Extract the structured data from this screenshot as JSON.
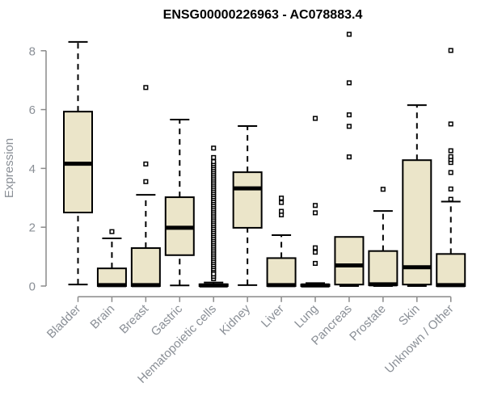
{
  "chart_data": {
    "type": "boxplot",
    "title": "ENSG00000226963 - AC078883.4",
    "ylabel": "Expression",
    "ylim": [
      0,
      8.6
    ],
    "yticks": [
      0,
      2,
      4,
      6,
      8
    ],
    "grid": false,
    "legend": "none",
    "categories": [
      "Bladder",
      "Brain",
      "Breast",
      "Gastric",
      "Hematopoietic cells",
      "Kidney",
      "Liver",
      "Lung",
      "Pancreas",
      "Prostate",
      "Skin",
      "Unknown / Other"
    ],
    "boxes": [
      {
        "category": "Bladder",
        "low": 0.05,
        "q1": 2.5,
        "median": 4.16,
        "q3": 5.93,
        "high": 8.3,
        "outliers": []
      },
      {
        "category": "Brain",
        "low": 0.0,
        "q1": 0.0,
        "median": 0.03,
        "q3": 0.6,
        "high": 1.62,
        "outliers": [
          1.85
        ]
      },
      {
        "category": "Breast",
        "low": 0.0,
        "q1": 0.0,
        "median": 0.03,
        "q3": 1.29,
        "high": 3.1,
        "outliers": [
          3.55,
          4.15,
          6.75
        ]
      },
      {
        "category": "Gastric",
        "low": 0.02,
        "q1": 1.05,
        "median": 1.98,
        "q3": 3.02,
        "high": 5.66,
        "outliers": []
      },
      {
        "category": "Hematopoietic cells",
        "low": 0.0,
        "q1": 0.0,
        "median": 0.02,
        "q3": 0.06,
        "high": 0.12,
        "outliers": [
          0.25,
          0.33,
          0.41,
          4.37,
          4.69
        ],
        "outlier_band": {
          "from": 0.45,
          "to": 4.25
        }
      },
      {
        "category": "Kidney",
        "low": 0.03,
        "q1": 1.98,
        "median": 3.32,
        "q3": 3.87,
        "high": 5.44,
        "outliers": []
      },
      {
        "category": "Liver",
        "low": 0.0,
        "q1": 0.0,
        "median": 0.03,
        "q3": 0.95,
        "high": 1.73,
        "outliers": [
          2.42,
          2.54,
          2.84,
          2.99
        ]
      },
      {
        "category": "Lung",
        "low": 0.0,
        "q1": 0.0,
        "median": 0.02,
        "q3": 0.05,
        "high": 0.1,
        "outliers": [
          0.77,
          1.15,
          1.3,
          2.49,
          2.74,
          5.7
        ]
      },
      {
        "category": "Pancreas",
        "low": 0.0,
        "q1": 0.05,
        "median": 0.7,
        "q3": 1.67,
        "high": 1.67,
        "outliers": [
          4.39,
          5.43,
          5.82,
          6.91,
          8.56
        ]
      },
      {
        "category": "Prostate",
        "low": 0.0,
        "q1": 0.03,
        "median": 0.06,
        "q3": 1.19,
        "high": 2.55,
        "outliers": [
          3.29
        ]
      },
      {
        "category": "Skin",
        "low": 0.0,
        "q1": 0.05,
        "median": 0.64,
        "q3": 4.28,
        "high": 6.15,
        "outliers": []
      },
      {
        "category": "Unknown / Other",
        "low": 0.0,
        "q1": 0.0,
        "median": 0.03,
        "q3": 1.09,
        "high": 2.87,
        "outliers": [
          2.95,
          3.3,
          3.86,
          4.2,
          4.3,
          4.4,
          4.6,
          5.51,
          8.01
        ]
      }
    ],
    "colors": {
      "box_fill": "#EBE5C9",
      "box_stroke": "#000000",
      "median": "#000000",
      "whisker": "#000000",
      "outlier_stroke": "#000000",
      "axis": "#8a8a8a",
      "tick_text": "#8a8f96",
      "title_text": "#000000",
      "background": "#ffffff"
    }
  }
}
